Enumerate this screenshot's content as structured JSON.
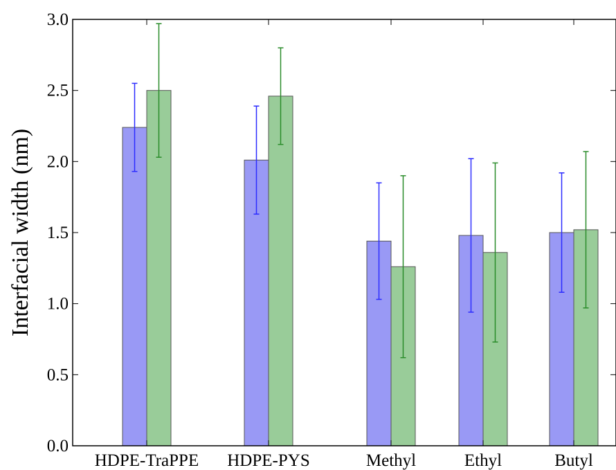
{
  "chart_data": {
    "type": "bar",
    "title": "",
    "xlabel": "",
    "ylabel": "Interfacial width (nm)",
    "ylim": [
      0,
      3.0
    ],
    "yticks": [
      "0.0",
      "0.5",
      "1.0",
      "1.5",
      "2.0",
      "2.5",
      "3.0"
    ],
    "grid": false,
    "legend": "none",
    "categories": [
      "HDPE-TraPPE",
      "HDPE-PYS",
      "Methyl",
      "Ethyl",
      "Butyl"
    ],
    "series": [
      {
        "color": "#9999f5",
        "error_color": "#2b2bff",
        "values": [
          2.24,
          2.01,
          1.44,
          1.48,
          1.5
        ],
        "error": [
          0.31,
          0.38,
          0.41,
          0.54,
          0.42
        ]
      },
      {
        "color": "#99cc99",
        "error_color": "#2a8c2a",
        "values": [
          2.5,
          2.46,
          1.26,
          1.36,
          1.52
        ],
        "error": [
          0.47,
          0.34,
          0.64,
          0.63,
          0.55
        ]
      }
    ]
  }
}
